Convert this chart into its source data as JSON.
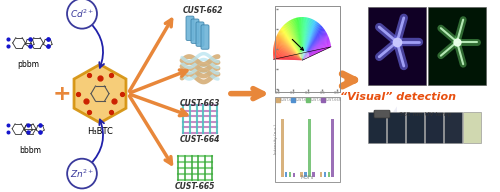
{
  "left_labels": [
    "pbbm",
    "bbbm"
  ],
  "center_label": "H₃BTC",
  "cust_labels": [
    "CUST-662",
    "CUST-663",
    "CUST-664",
    "CUST-665"
  ],
  "metal_labels": [
    "Cd²⁺",
    "Zn²⁺"
  ],
  "visual_text": "“Visual” detection",
  "uv_text": "365 nm UV lamp",
  "arrow_color": "#E8873A",
  "cd_color": "#3A3A9C",
  "zn_color": "#3A3A9C",
  "cust662_color": "#6EB4D8",
  "cust663_color": "#D4AA70",
  "cust664_color_h": "#C080C0",
  "cust664_color_v": "#50C0C0",
  "cust665_color": "#70C870",
  "hex_color": "#F5C86A",
  "hex_edge": "#D4900A",
  "plus_color": "#E8873A",
  "visual_color": "#E85010"
}
